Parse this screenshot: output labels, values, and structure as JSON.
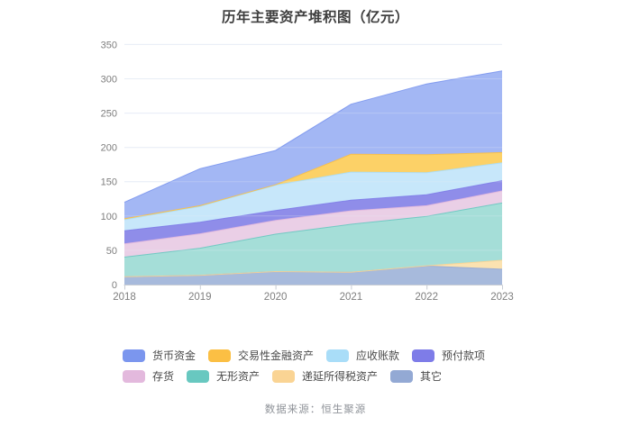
{
  "chart_data": {
    "type": "area",
    "stacked": true,
    "title": "历年主要资产堆积图（亿元）",
    "x": [
      "2018",
      "2019",
      "2020",
      "2021",
      "2022",
      "2023"
    ],
    "ylim": [
      0,
      350
    ],
    "yticks": [
      0,
      50,
      100,
      150,
      200,
      250,
      300,
      350
    ],
    "grid": true,
    "legend_position": "bottom",
    "series": [
      {
        "name": "货币资金",
        "color": "#7b96ee",
        "area_color": "#a3b7f4",
        "values": [
          24,
          54,
          50,
          73,
          103,
          119
        ]
      },
      {
        "name": "交易性金融资产",
        "color": "#fbbf44",
        "area_color": "#fcd167",
        "values": [
          1.5,
          1,
          0.5,
          26,
          26.5,
          15
        ]
      },
      {
        "name": "应收账款",
        "color": "#a9ddf8",
        "area_color": "#c7e7fa",
        "values": [
          16,
          23,
          37,
          41,
          32,
          26
        ]
      },
      {
        "name": "预付款项",
        "color": "#7e7ce8",
        "area_color": "#8f8de9",
        "values": [
          19,
          17,
          14.5,
          15.5,
          16,
          15
        ]
      },
      {
        "name": "存货",
        "color": "#e3b9dd",
        "area_color": "#eacfe6",
        "values": [
          19.5,
          21,
          20,
          19.5,
          15.5,
          17.5
        ]
      },
      {
        "name": "无形资产",
        "color": "#68c8c0",
        "area_color": "#a5ded8",
        "values": [
          28.5,
          39.5,
          54.5,
          70,
          72,
          83.5
        ]
      },
      {
        "name": "递延所得税资产",
        "color": "#fad494",
        "area_color": "#fbe2b0",
        "values": [
          0,
          0,
          0,
          0,
          0.5,
          13
        ]
      },
      {
        "name": "其它",
        "color": "#93a9d4",
        "area_color": "#a7badc",
        "values": [
          11.5,
          13.5,
          19,
          18,
          27,
          22.5
        ]
      }
    ],
    "axis_colors": {
      "grid_line": "#e8edf6",
      "axis_line": "#c9cdd4",
      "tick_label": "#7e7e7e"
    }
  },
  "footer": {
    "source": "数据来源：恒生聚源"
  }
}
